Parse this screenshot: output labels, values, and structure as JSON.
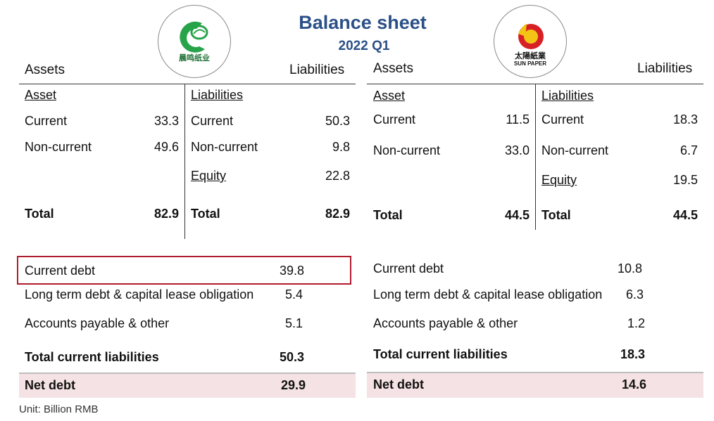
{
  "title": "Balance sheet",
  "subtitle": "2022 Q1",
  "unit": "Unit: Billion RMB",
  "colors": {
    "title": "#2b4f87",
    "highlight_box": "#b01c2e",
    "net_debt_band": "#f5e2e4"
  },
  "left": {
    "logo": {
      "icon": "chenming-paper-logo",
      "text": "晨鸣纸业"
    },
    "header": {
      "assets": "Assets",
      "liabilities": "Liabilities"
    },
    "asset_heading": "Asset",
    "liab_heading": "Liabilities",
    "assets": [
      {
        "label": "Current",
        "value": "33.3"
      },
      {
        "label": "Non-current",
        "value": "49.6"
      }
    ],
    "liabilities": [
      {
        "label": "Current",
        "value": "50.3"
      },
      {
        "label": "Non-current",
        "value": "9.8"
      }
    ],
    "equity": {
      "label": "Equity",
      "value": "22.8"
    },
    "total_assets": {
      "label": "Total",
      "value": "82.9"
    },
    "total_liab": {
      "label": "Total",
      "value": "82.9"
    },
    "debt": [
      {
        "label": "Current debt",
        "value": "39.8"
      },
      {
        "label": "Long term debt & capital lease obligation",
        "value": "5.4"
      },
      {
        "label": "Accounts payable & other",
        "value": "5.1"
      }
    ],
    "total_current_liabilities": {
      "label": "Total current liabilities",
      "value": "50.3"
    },
    "net_debt": {
      "label": "Net debt",
      "value": "29.9"
    }
  },
  "right": {
    "logo": {
      "icon": "sun-paper-logo",
      "text": "太陽紙業",
      "subtext": "SUN PAPER"
    },
    "header": {
      "assets": "Assets",
      "liabilities": "Liabilities"
    },
    "asset_heading": "Asset",
    "liab_heading": "Liabilities",
    "assets": [
      {
        "label": "Current",
        "value": "11.5"
      },
      {
        "label": "Non-current",
        "value": "33.0"
      }
    ],
    "liabilities": [
      {
        "label": "Current",
        "value": "18.3"
      },
      {
        "label": "Non-current",
        "value": "6.7"
      }
    ],
    "equity": {
      "label": "Equity",
      "value": "19.5"
    },
    "total_assets": {
      "label": "Total",
      "value": "44.5"
    },
    "total_liab": {
      "label": "Total",
      "value": "44.5"
    },
    "debt": [
      {
        "label": "Current debt",
        "value": "10.8"
      },
      {
        "label": "Long term debt & capital lease obligation",
        "value": "6.3"
      },
      {
        "label": "Accounts payable & other",
        "value": "1.2"
      }
    ],
    "total_current_liabilities": {
      "label": "Total current liabilities",
      "value": "18.3"
    },
    "net_debt": {
      "label": "Net debt",
      "value": "14.6"
    }
  }
}
